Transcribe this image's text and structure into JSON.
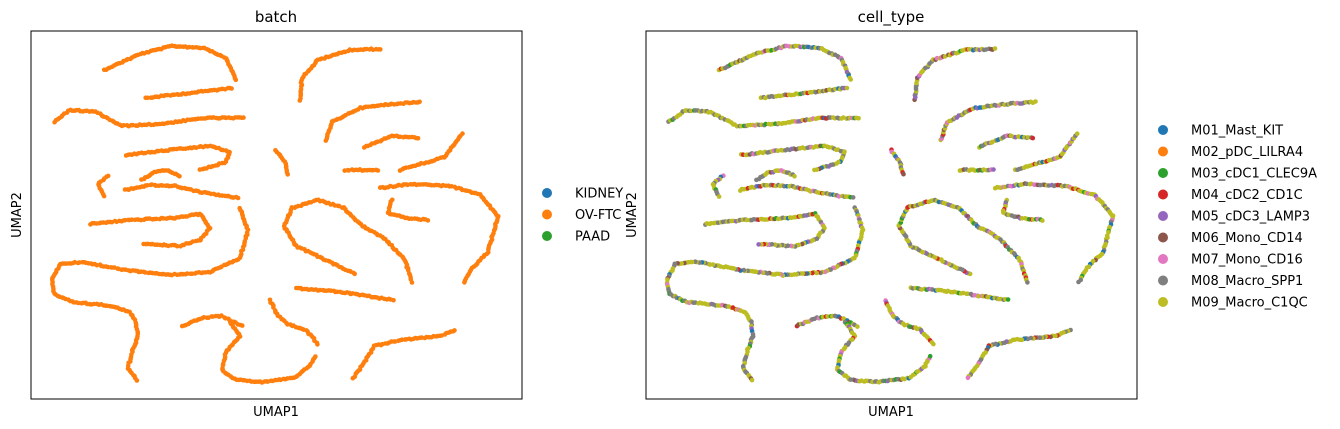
{
  "chart_data": [
    {
      "type": "scatter",
      "title": "batch",
      "xlabel": "UMAP1",
      "ylabel": "UMAP2",
      "grid": false,
      "ticks": false,
      "legend_position": "right",
      "legend": [
        {
          "label": "KIDNEY",
          "color": "#1f77b4"
        },
        {
          "label": "OV-FTC",
          "color": "#ff7f0e"
        },
        {
          "label": "PAAD",
          "color": "#2ca02c"
        }
      ],
      "point_color_series": "OV-FTC"
    },
    {
      "type": "scatter",
      "title": "cell_type",
      "xlabel": "UMAP1",
      "ylabel": "UMAP2",
      "grid": false,
      "ticks": false,
      "legend_position": "right",
      "legend": [
        {
          "label": "M01_Mast_KIT",
          "color": "#1f77b4"
        },
        {
          "label": "M02_pDC_LILRA4",
          "color": "#ff7f0e"
        },
        {
          "label": "M03_cDC1_CLEC9A",
          "color": "#2ca02c"
        },
        {
          "label": "M04_cDC2_CD1C",
          "color": "#d62728"
        },
        {
          "label": "M05_cDC3_LAMP3",
          "color": "#9467bd"
        },
        {
          "label": "M06_Mono_CD14",
          "color": "#8c564b"
        },
        {
          "label": "M07_Mono_CD16",
          "color": "#e377c2"
        },
        {
          "label": "M08_Macro_SPP1",
          "color": "#7f7f7f"
        },
        {
          "label": "M09_Macro_C1QC",
          "color": "#bcbd22"
        }
      ],
      "dominant_series": [
        "M09_Macro_C1QC",
        "M08_Macro_SPP1"
      ]
    }
  ]
}
